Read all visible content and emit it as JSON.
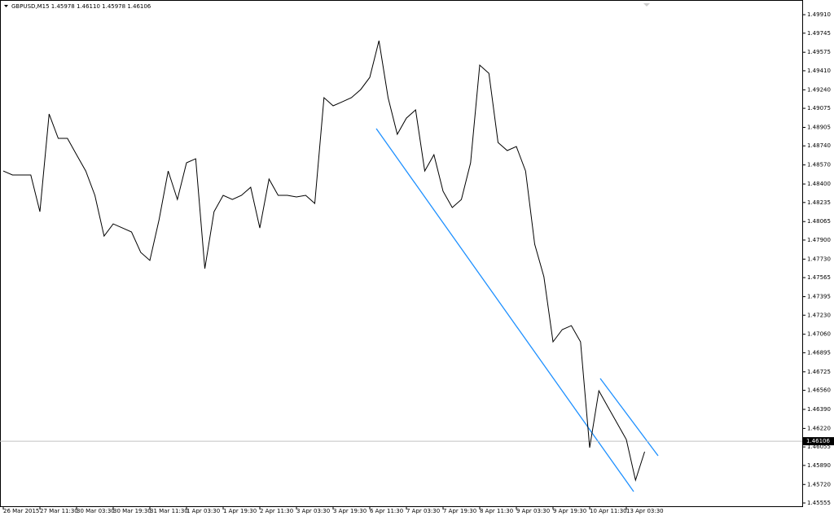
{
  "chart_data": {
    "type": "line",
    "title": "GBPUSD,M15  1.45978 1.46110 1.45978 1.46106",
    "categories": [
      "26 Mar 2015",
      null,
      null,
      null,
      "27 Mar 11:30",
      null,
      null,
      null,
      "30 Mar 03:30",
      null,
      null,
      null,
      "30 Mar 19:30",
      null,
      null,
      null,
      "31 Mar 11:30",
      null,
      null,
      null,
      "1 Apr 03:30",
      null,
      null,
      null,
      "1 Apr 19:30",
      null,
      null,
      null,
      "2 Apr 11:30",
      null,
      null,
      null,
      "3 Apr 03:30",
      null,
      null,
      null,
      "3 Apr 19:30",
      null,
      null,
      null,
      "6 Apr 11:30",
      null,
      null,
      null,
      "7 Apr 03:30",
      null,
      null,
      null,
      "7 Apr 19:30",
      null,
      null,
      null,
      "8 Apr 11:30",
      null,
      null,
      null,
      "9 Apr 03:30",
      null,
      null,
      null,
      "9 Apr 19:30",
      null,
      null,
      null,
      "10 Apr 11:30",
      null,
      null,
      null,
      "13 Apr 03:30",
      null,
      null
    ],
    "series": [
      {
        "name": "GBPUSD",
        "color": "#000000",
        "values": [
          1.48516,
          1.4848,
          1.4848,
          1.4848,
          1.48153,
          1.49024,
          1.48807,
          1.48807,
          1.48661,
          1.48516,
          1.48299,
          1.47935,
          1.48044,
          1.48008,
          1.47972,
          1.4779,
          1.47718,
          1.48081,
          1.48516,
          1.48262,
          1.48589,
          1.48625,
          1.47645,
          1.48153,
          1.48299,
          1.48262,
          1.48299,
          1.48371,
          1.48008,
          1.48444,
          1.48299,
          1.48299,
          1.48284,
          1.48299,
          1.48226,
          1.4917,
          1.49097,
          1.49133,
          1.4917,
          1.49242,
          1.49351,
          1.49678,
          1.4917,
          1.48843,
          1.48988,
          1.49061,
          1.48516,
          1.48661,
          1.48335,
          1.4819,
          1.48262,
          1.48589,
          1.4946,
          1.49387,
          1.4877,
          1.48698,
          1.48734,
          1.48516,
          1.47863,
          1.47573,
          1.46992,
          1.47101,
          1.47137,
          1.46992,
          1.46048,
          1.46556,
          1.46411,
          1.46266,
          1.46121,
          1.45758,
          1.46012
        ]
      }
    ],
    "ylim": [
      1.45526,
      1.50041
    ],
    "yticks": [
      {
        "value": 1.4991,
        "label": "1.49910"
      },
      {
        "value": 1.49745,
        "label": "1.49745"
      },
      {
        "value": 1.49575,
        "label": "1.49575"
      },
      {
        "value": 1.4941,
        "label": "1.49410"
      },
      {
        "value": 1.4924,
        "label": "1.49240"
      },
      {
        "value": 1.49075,
        "label": "1.49075"
      },
      {
        "value": 1.48905,
        "label": "1.48905"
      },
      {
        "value": 1.4874,
        "label": "1.48740"
      },
      {
        "value": 1.4857,
        "label": "1.48570"
      },
      {
        "value": 1.484,
        "label": "1.48400"
      },
      {
        "value": 1.48235,
        "label": "1.48235"
      },
      {
        "value": 1.48065,
        "label": "1.48065"
      },
      {
        "value": 1.479,
        "label": "1.47900"
      },
      {
        "value": 1.4773,
        "label": "1.47730"
      },
      {
        "value": 1.47565,
        "label": "1.47565"
      },
      {
        "value": 1.47395,
        "label": "1.47395"
      },
      {
        "value": 1.4723,
        "label": "1.47230"
      },
      {
        "value": 1.4706,
        "label": "1.47060"
      },
      {
        "value": 1.46895,
        "label": "1.46895"
      },
      {
        "value": 1.46725,
        "label": "1.46725"
      },
      {
        "value": 1.4656,
        "label": "1.46560"
      },
      {
        "value": 1.4639,
        "label": "1.46390"
      },
      {
        "value": 1.4622,
        "label": "1.46220"
      },
      {
        "value": 1.46055,
        "label": "1.46055"
      },
      {
        "value": 1.4589,
        "label": "1.45890"
      },
      {
        "value": 1.4572,
        "label": "1.45720"
      },
      {
        "value": 1.45555,
        "label": "1.45555"
      }
    ],
    "current_price": {
      "value": 1.46106,
      "label": "1.46106"
    },
    "grid": false
  }
}
